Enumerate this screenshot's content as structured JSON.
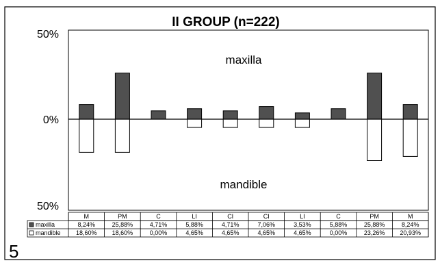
{
  "panel_label": "5",
  "chart_data": {
    "type": "bar",
    "title": "II GROUP (n=222)",
    "categories": [
      "M",
      "PM",
      "C",
      "LI",
      "CI",
      "CI",
      "LI",
      "C",
      "PM",
      "M"
    ],
    "series": [
      {
        "name": "maxilla",
        "direction": "up",
        "color": "#505050",
        "values": [
          8.24,
          25.88,
          4.71,
          5.88,
          4.71,
          7.06,
          3.53,
          5.88,
          25.88,
          8.24
        ],
        "labels": [
          "8,24%",
          "25,88%",
          "4,71%",
          "5,88%",
          "4,71%",
          "7,06%",
          "3,53%",
          "5,88%",
          "25,88%",
          "8,24%"
        ]
      },
      {
        "name": "mandible",
        "direction": "down",
        "color": "#ffffff",
        "values": [
          18.6,
          18.6,
          0.0,
          4.65,
          4.65,
          4.65,
          4.65,
          0.0,
          23.26,
          20.93
        ],
        "labels": [
          "18,60%",
          "18,60%",
          "0,00%",
          "4,65%",
          "4,65%",
          "4,65%",
          "4,65%",
          "0,00%",
          "23,26%",
          "20,93%"
        ]
      }
    ],
    "y_ticks": [
      "50%",
      "0%",
      "50%"
    ],
    "ylim": [
      -50,
      50
    ],
    "annotations": {
      "upper": "maxilla",
      "lower": "mandible"
    },
    "grid": false,
    "legend": "data-table"
  }
}
